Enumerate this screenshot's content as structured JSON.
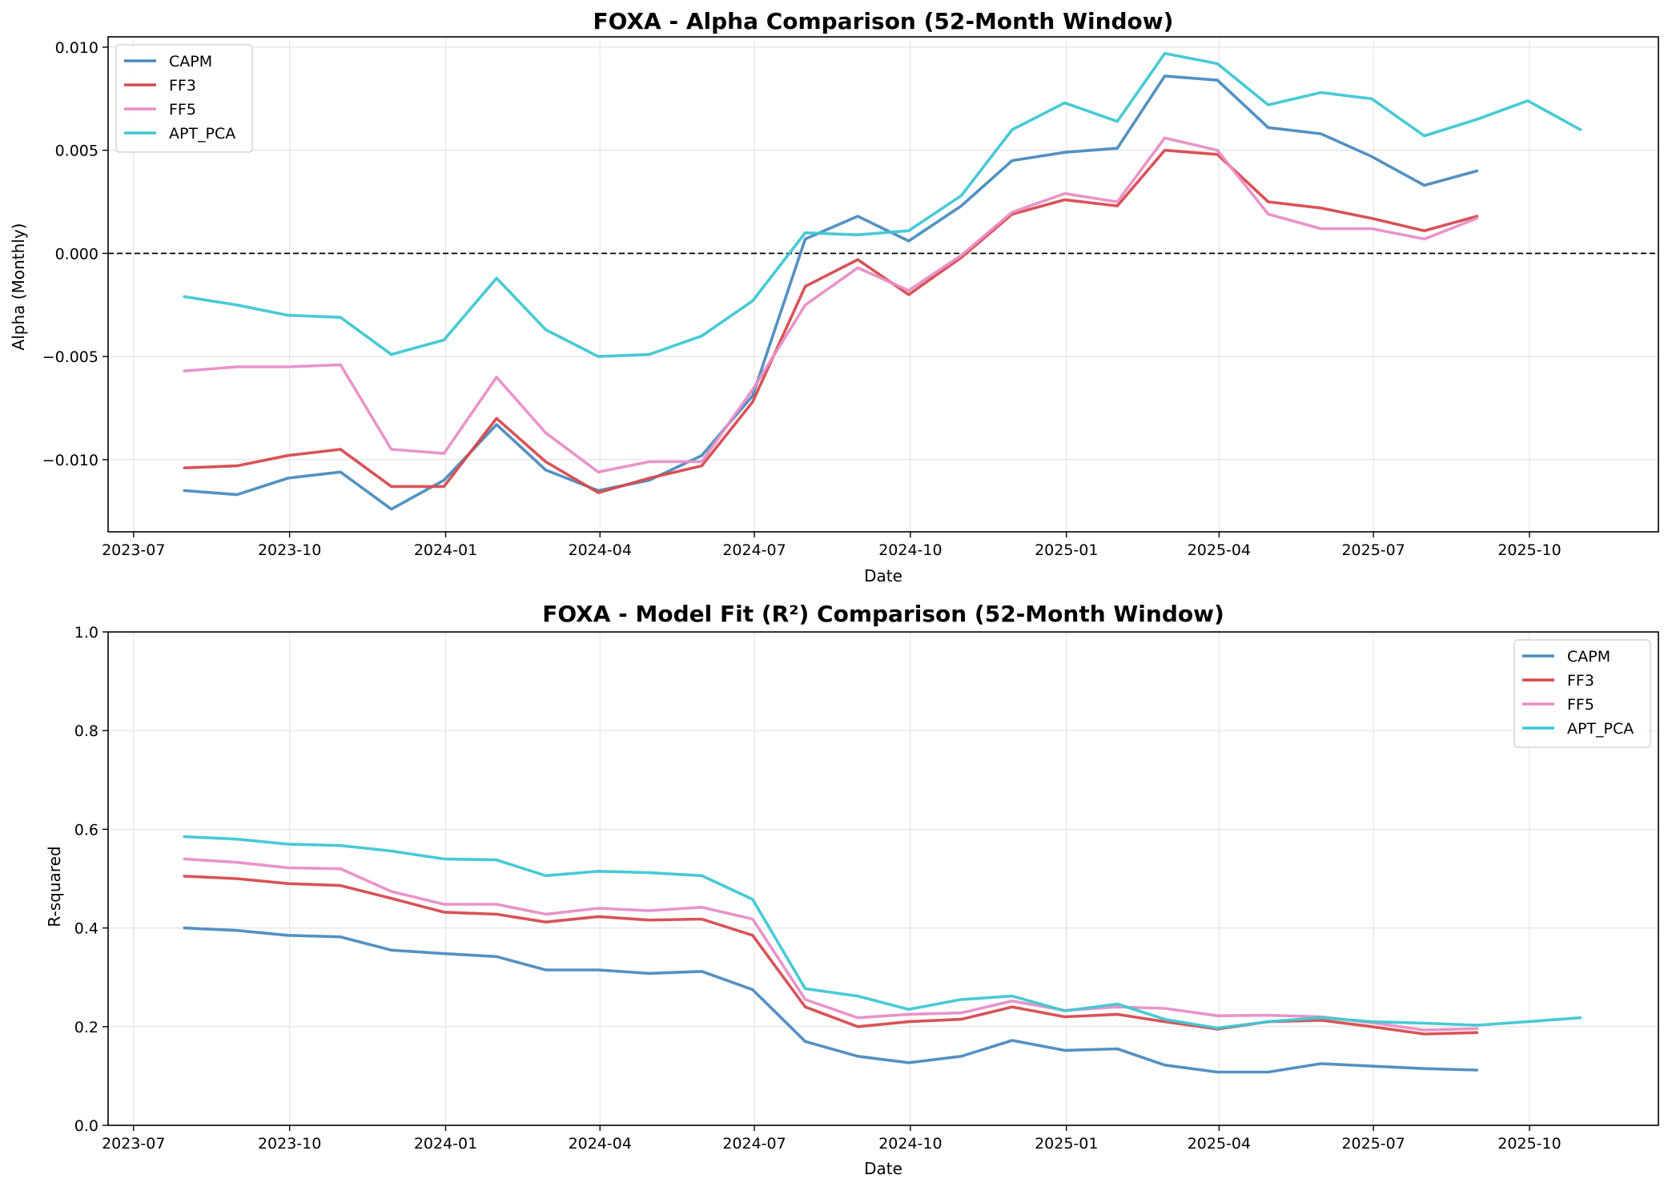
{
  "chart_data": [
    {
      "type": "line",
      "title": "FOXA - Alpha Comparison (52-Month Window)",
      "xlabel": "Date",
      "ylabel": "Alpha (Monthly)",
      "xlim": [
        "2023-06-16",
        "2025-12-16"
      ],
      "ylim": [
        -0.0135,
        0.0105
      ],
      "yticks": [
        -0.01,
        -0.005,
        0.0,
        0.005,
        0.01
      ],
      "ytick_labels": [
        "−0.010",
        "−0.005",
        "0.000",
        "0.005",
        "0.010"
      ],
      "xticks": [
        "2023-07-01",
        "2023-10-01",
        "2024-01-01",
        "2024-04-01",
        "2024-07-01",
        "2024-10-01",
        "2025-01-01",
        "2025-04-01",
        "2025-07-01",
        "2025-10-01"
      ],
      "xtick_labels": [
        "2023-07",
        "2023-10",
        "2024-01",
        "2024-04",
        "2024-07",
        "2024-10",
        "2025-01",
        "2025-04",
        "2025-07",
        "2025-10"
      ],
      "hline": 0.0,
      "grid": true,
      "legend_position": "upper left",
      "dates": [
        "2023-07-31",
        "2023-08-31",
        "2023-09-30",
        "2023-10-31",
        "2023-11-30",
        "2023-12-31",
        "2024-01-31",
        "2024-02-29",
        "2024-03-31",
        "2024-04-30",
        "2024-05-31",
        "2024-06-30",
        "2024-07-31",
        "2024-08-31",
        "2024-09-30",
        "2024-10-31",
        "2024-11-30",
        "2024-12-31",
        "2025-01-31",
        "2025-02-28",
        "2025-03-31",
        "2025-04-30",
        "2025-05-31",
        "2025-06-30",
        "2025-07-31",
        "2025-08-31",
        "2025-09-30",
        "2025-10-31"
      ],
      "series": [
        {
          "name": "CAPM",
          "color": "#4b8bbe",
          "values": [
            -0.0115,
            -0.0117,
            -0.0109,
            -0.0106,
            -0.0124,
            -0.011,
            -0.0083,
            -0.0105,
            -0.0115,
            -0.011,
            -0.0098,
            -0.0069,
            0.0007,
            0.0018,
            0.0006,
            0.0023,
            0.0045,
            0.0049,
            0.0051,
            0.0086,
            0.0084,
            0.0061,
            0.0058,
            0.0047,
            0.0033,
            0.004,
            null,
            null
          ]
        },
        {
          "name": "FF3",
          "color": "#d64a4f",
          "values": [
            -0.0104,
            -0.0103,
            -0.0098,
            -0.0095,
            -0.0113,
            -0.0113,
            -0.008,
            -0.0101,
            -0.0116,
            -0.0109,
            -0.0103,
            -0.0072,
            -0.0016,
            -0.0003,
            -0.002,
            -0.0002,
            0.0019,
            0.0026,
            0.0023,
            0.005,
            0.0048,
            0.0025,
            0.0022,
            0.0017,
            0.0011,
            0.0018,
            null,
            null
          ]
        },
        {
          "name": "FF5",
          "color": "#e88ec6",
          "values": [
            -0.0057,
            -0.0055,
            -0.0055,
            -0.0054,
            -0.0095,
            -0.0097,
            -0.006,
            -0.0087,
            -0.0106,
            -0.0101,
            -0.0101,
            -0.0066,
            -0.0025,
            -0.0007,
            -0.0018,
            -0.0001,
            0.002,
            0.0029,
            0.0025,
            0.0056,
            0.005,
            0.0019,
            0.0012,
            0.0012,
            0.0007,
            0.0017,
            null,
            null
          ]
        },
        {
          "name": "APT_PCA",
          "color": "#3ec7d3",
          "values": [
            -0.0021,
            -0.0025,
            -0.003,
            -0.0031,
            -0.0049,
            -0.0042,
            -0.0012,
            -0.0037,
            -0.005,
            -0.0049,
            -0.004,
            -0.0023,
            0.001,
            0.0009,
            0.0011,
            0.0028,
            0.006,
            0.0073,
            0.0064,
            0.0097,
            0.0092,
            0.0072,
            0.0078,
            0.0075,
            0.0057,
            0.0065,
            0.0074,
            0.006
          ]
        }
      ]
    },
    {
      "type": "line",
      "title": "FOXA - Model Fit (R²) Comparison (52-Month Window)",
      "xlabel": "Date",
      "ylabel": "R-squared",
      "xlim": [
        "2023-06-16",
        "2025-12-16"
      ],
      "ylim": [
        0.0,
        1.0
      ],
      "yticks": [
        0.0,
        0.2,
        0.4,
        0.6,
        0.8,
        1.0
      ],
      "ytick_labels": [
        "0.0",
        "0.2",
        "0.4",
        "0.6",
        "0.8",
        "1.0"
      ],
      "xticks": [
        "2023-07-01",
        "2023-10-01",
        "2024-01-01",
        "2024-04-01",
        "2024-07-01",
        "2024-10-01",
        "2025-01-01",
        "2025-04-01",
        "2025-07-01",
        "2025-10-01"
      ],
      "xtick_labels": [
        "2023-07",
        "2023-10",
        "2024-01",
        "2024-04",
        "2024-07",
        "2024-10",
        "2025-01",
        "2025-04",
        "2025-07",
        "2025-10"
      ],
      "grid": true,
      "legend_position": "upper right",
      "dates": [
        "2023-07-31",
        "2023-08-31",
        "2023-09-30",
        "2023-10-31",
        "2023-11-30",
        "2023-12-31",
        "2024-01-31",
        "2024-02-29",
        "2024-03-31",
        "2024-04-30",
        "2024-05-31",
        "2024-06-30",
        "2024-07-31",
        "2024-08-31",
        "2024-09-30",
        "2024-10-31",
        "2024-11-30",
        "2024-12-31",
        "2025-01-31",
        "2025-02-28",
        "2025-03-31",
        "2025-04-30",
        "2025-05-31",
        "2025-06-30",
        "2025-07-31",
        "2025-08-31",
        "2025-09-30",
        "2025-10-31"
      ],
      "series": [
        {
          "name": "CAPM",
          "color": "#4b8bbe",
          "values": [
            0.4,
            0.395,
            0.385,
            0.382,
            0.355,
            0.348,
            0.342,
            0.315,
            0.315,
            0.308,
            0.312,
            0.275,
            0.17,
            0.14,
            0.127,
            0.14,
            0.172,
            0.152,
            0.155,
            0.122,
            0.108,
            0.108,
            0.125,
            0.12,
            0.115,
            0.112,
            null,
            null
          ]
        },
        {
          "name": "FF3",
          "color": "#d64a4f",
          "values": [
            0.505,
            0.5,
            0.49,
            0.486,
            0.46,
            0.432,
            0.428,
            0.412,
            0.423,
            0.416,
            0.418,
            0.385,
            0.24,
            0.2,
            0.21,
            0.215,
            0.24,
            0.22,
            0.225,
            0.21,
            0.195,
            0.21,
            0.213,
            0.2,
            0.185,
            0.188,
            null,
            null
          ]
        },
        {
          "name": "FF5",
          "color": "#e88ec6",
          "values": [
            0.54,
            0.533,
            0.522,
            0.52,
            0.474,
            0.448,
            0.448,
            0.428,
            0.44,
            0.435,
            0.442,
            0.418,
            0.255,
            0.218,
            0.225,
            0.228,
            0.252,
            0.233,
            0.24,
            0.237,
            0.222,
            0.223,
            0.22,
            0.208,
            0.193,
            0.196,
            null,
            null
          ]
        },
        {
          "name": "APT_PCA",
          "color": "#3ec7d3",
          "values": [
            0.585,
            0.58,
            0.57,
            0.567,
            0.556,
            0.54,
            0.538,
            0.506,
            0.515,
            0.512,
            0.506,
            0.458,
            0.277,
            0.262,
            0.235,
            0.255,
            0.262,
            0.232,
            0.246,
            0.215,
            0.197,
            0.21,
            0.218,
            0.21,
            0.207,
            0.203,
            0.21,
            0.218
          ]
        }
      ]
    }
  ]
}
